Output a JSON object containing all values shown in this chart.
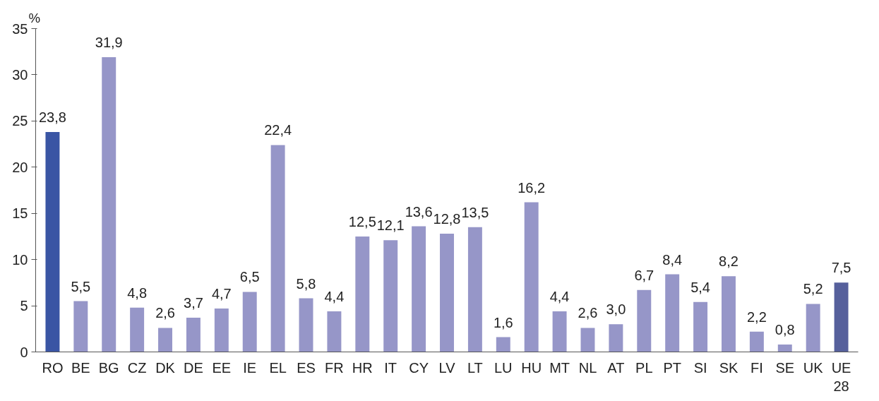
{
  "chart_data": {
    "type": "bar",
    "ylabel": "%",
    "categories": [
      "RO",
      "BE",
      "BG",
      "CZ",
      "DK",
      "DE",
      "EE",
      "IE",
      "EL",
      "ES",
      "FR",
      "HR",
      "IT",
      "CY",
      "LV",
      "LT",
      "LU",
      "HU",
      "MT",
      "NL",
      "AT",
      "PL",
      "PT",
      "SI",
      "SK",
      "FI",
      "SE",
      "UK",
      "UE 28"
    ],
    "values": [
      23.8,
      5.5,
      31.9,
      4.8,
      2.6,
      3.7,
      4.7,
      6.5,
      22.4,
      5.8,
      4.4,
      12.5,
      12.1,
      13.6,
      12.8,
      13.5,
      1.6,
      16.2,
      4.4,
      2.6,
      3.0,
      6.7,
      8.4,
      5.4,
      8.2,
      2.2,
      0.8,
      5.2,
      7.5
    ],
    "value_labels": [
      "23,8",
      "5,5",
      "31,9",
      "4,8",
      "2,6",
      "3,7",
      "4,7",
      "6,5",
      "22,4",
      "5,8",
      "4,4",
      "12,5",
      "12,1",
      "13,6",
      "12,8",
      "13,5",
      "1,6",
      "16,2",
      "4,4",
      "2,6",
      "3,0",
      "6,7",
      "8,4",
      "5,4",
      "8,2",
      "2,2",
      "0,8",
      "5,2",
      "7,5"
    ],
    "colors": [
      "#3a55a4",
      "#9696c8",
      "#9696c8",
      "#9696c8",
      "#9696c8",
      "#9696c8",
      "#9696c8",
      "#9696c8",
      "#9696c8",
      "#9696c8",
      "#9696c8",
      "#9696c8",
      "#9696c8",
      "#9696c8",
      "#9696c8",
      "#9696c8",
      "#9696c8",
      "#9696c8",
      "#9696c8",
      "#9696c8",
      "#9696c8",
      "#9696c8",
      "#9696c8",
      "#9696c8",
      "#9696c8",
      "#9696c8",
      "#9696c8",
      "#9696c8",
      "#56609c"
    ],
    "ylim": [
      0,
      35
    ],
    "yticks": [
      0,
      5,
      10,
      15,
      20,
      25,
      30,
      35
    ],
    "grid": false
  }
}
